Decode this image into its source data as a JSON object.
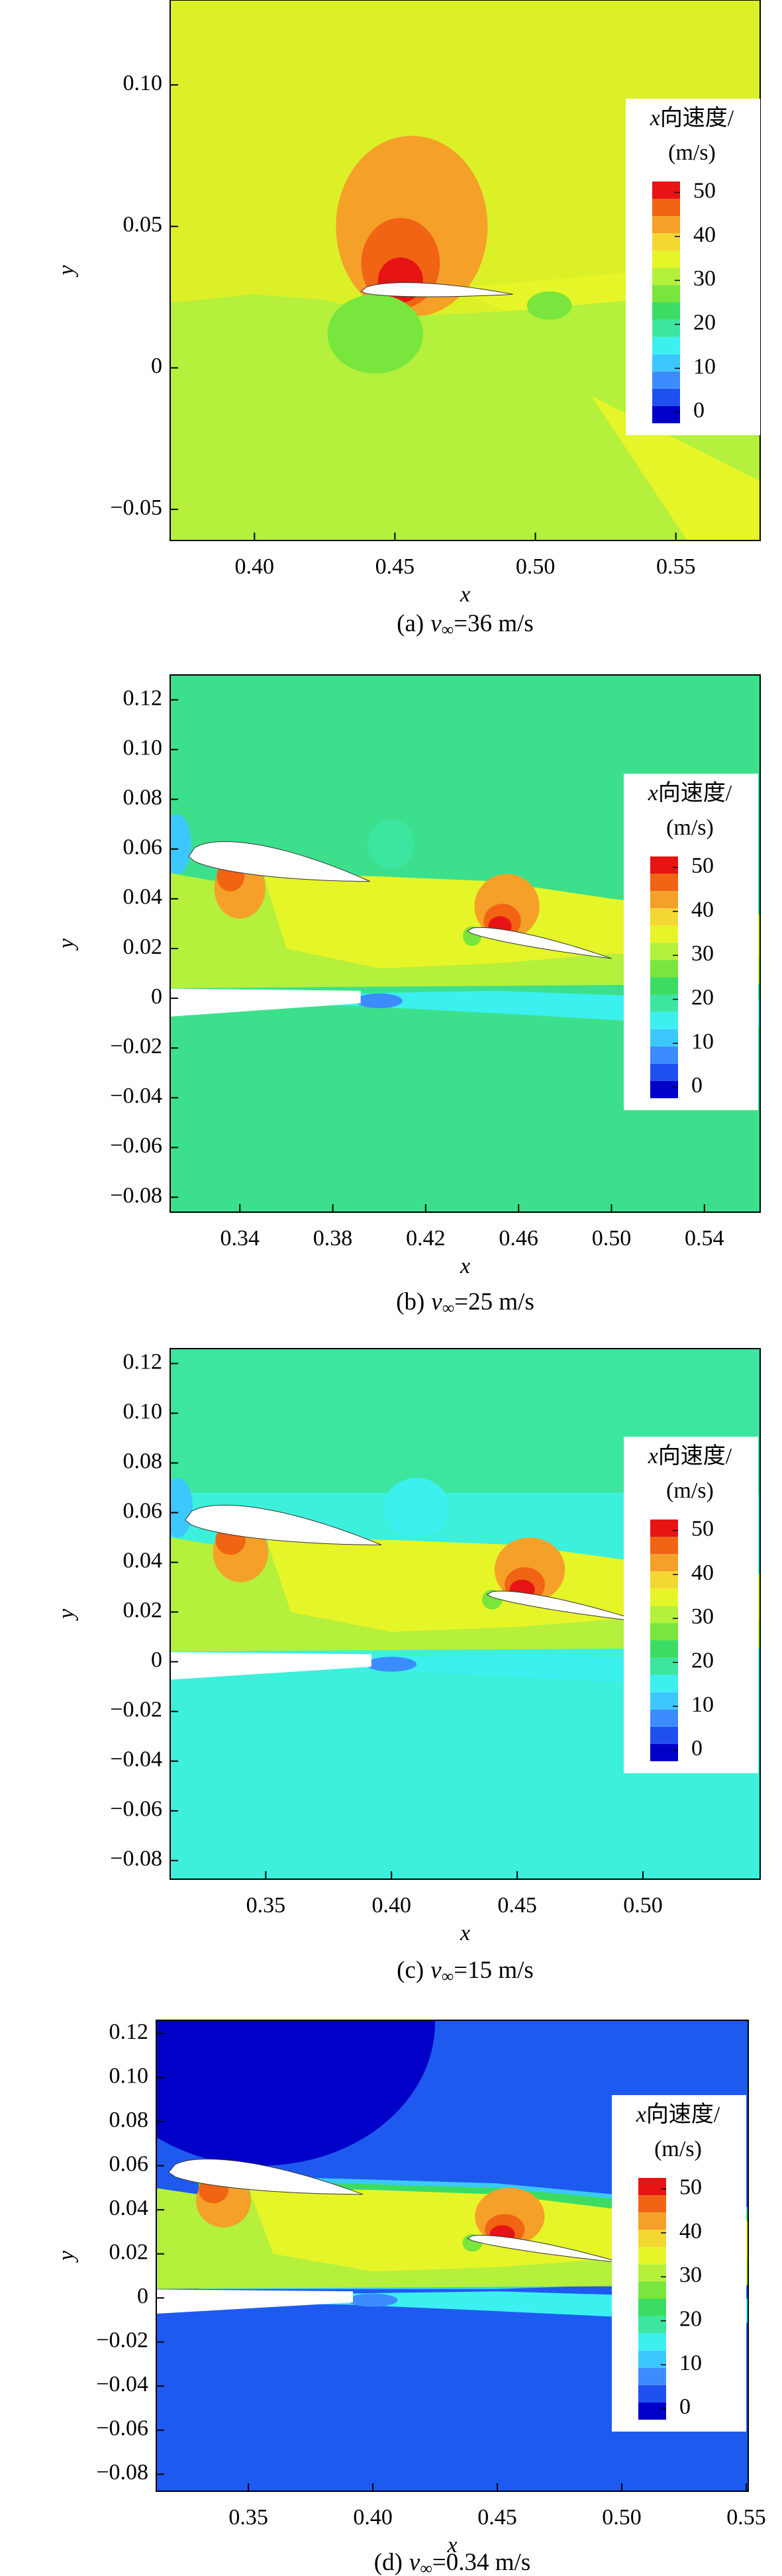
{
  "chart_data": [
    {
      "type": "contour",
      "caption": {
        "label": "(a)",
        "var": "v",
        "sub": "∞",
        "text": "=36 m/s"
      },
      "xlabel": "x",
      "ylabel": "y",
      "xlim": [
        0.37,
        0.58
      ],
      "ylim": [
        -0.061,
        0.13
      ],
      "xticks": [
        {
          "value": 0.4,
          "label": "0.40"
        },
        0.45,
        {
          "value": 0.5,
          "label": "0.50"
        },
        0.55
      ],
      "yticks": [
        {
          "value": -0.05,
          "label": "−0.05"
        },
        0,
        {
          "value": 0.05,
          "label": "0.05"
        },
        {
          "value": 0.1,
          "label": "0.10"
        }
      ],
      "background": "#dcf028",
      "colorbar": {
        "var": "x",
        "title": "向速度/",
        "unit": "(m/s)",
        "lim": [
          -2.5,
          52.5
        ],
        "ticks": [
          0,
          10,
          20,
          30,
          40,
          50
        ],
        "colors": [
          "#0000c8",
          "#1e50f0",
          "#3c8cff",
          "#3cc8ff",
          "#3cf0f0",
          "#3ce6a0",
          "#3cdc64",
          "#78e63c",
          "#b4f03c",
          "#e6f528",
          "#f5d732",
          "#f5a028",
          "#f06414",
          "#e61414"
        ]
      }
    },
    {
      "type": "contour",
      "caption": {
        "label": "(b)",
        "var": "v",
        "sub": "∞",
        "text": "=25 m/s"
      },
      "xlabel": "x",
      "ylabel": "y",
      "xlim": [
        0.31,
        0.564
      ],
      "ylim": [
        -0.086,
        0.13
      ],
      "xticks": [
        0.34,
        0.38,
        0.42,
        0.46,
        {
          "value": 0.5,
          "label": "0.50"
        },
        0.54
      ],
      "yticks": [
        {
          "value": -0.08,
          "label": "−0.08"
        },
        {
          "value": -0.06,
          "label": "−0.06"
        },
        {
          "value": -0.04,
          "label": "−0.04"
        },
        {
          "value": -0.02,
          "label": "−0.02"
        },
        0,
        0.02,
        0.04,
        0.06,
        0.08,
        {
          "value": 0.1,
          "label": "0.10"
        },
        0.12
      ],
      "background": "#3ce08c",
      "colorbar": {
        "var": "x",
        "title": "向速度/",
        "unit": "(m/s)",
        "lim": [
          -2.5,
          52.5
        ],
        "ticks": [
          0,
          10,
          20,
          30,
          40,
          50
        ],
        "colors": [
          "#0000c8",
          "#1e50f0",
          "#3c8cff",
          "#3cc8ff",
          "#3cf0f0",
          "#3ce6a0",
          "#3cdc64",
          "#78e63c",
          "#b4f03c",
          "#e6f528",
          "#f5d732",
          "#f5a028",
          "#f06414",
          "#e61414"
        ]
      }
    },
    {
      "type": "contour",
      "caption": {
        "label": "(c)",
        "var": "v",
        "sub": "∞",
        "text": "=15 m/s"
      },
      "xlabel": "x",
      "ylabel": "y",
      "xlim": [
        0.312,
        0.5466
      ],
      "ylim": [
        -0.0875,
        0.126
      ],
      "xticks": [
        0.35,
        {
          "value": 0.4,
          "label": "0.40"
        },
        0.45,
        {
          "value": 0.5,
          "label": "0.50"
        }
      ],
      "yticks": [
        {
          "value": -0.08,
          "label": "−0.08"
        },
        {
          "value": -0.06,
          "label": "−0.06"
        },
        {
          "value": -0.04,
          "label": "−0.04"
        },
        {
          "value": -0.02,
          "label": "−0.02"
        },
        0,
        0.02,
        0.04,
        0.06,
        0.08,
        {
          "value": 0.1,
          "label": "0.10"
        },
        0.12
      ],
      "background": "#3cf0dc",
      "colorbar": {
        "var": "x",
        "title": "向速度/",
        "unit": "(m/s)",
        "lim": [
          -2.5,
          52.5
        ],
        "ticks": [
          0,
          10,
          20,
          30,
          40,
          50
        ],
        "colors": [
          "#0000c8",
          "#1e50f0",
          "#3c8cff",
          "#3cc8ff",
          "#3cf0f0",
          "#3ce6a0",
          "#3cdc64",
          "#78e63c",
          "#b4f03c",
          "#e6f528",
          "#f5d732",
          "#f5a028",
          "#f06414",
          "#e61414"
        ]
      }
    },
    {
      "type": "contour",
      "caption": {
        "label": "(d)",
        "var": "v",
        "sub": "∞",
        "text": "=0.34 m/s"
      },
      "xlabel": "x",
      "ylabel": "y",
      "xlim": [
        0.313,
        0.5508
      ],
      "ylim": [
        -0.0877,
        0.126
      ],
      "xticks": [
        0.35,
        {
          "value": 0.4,
          "label": "0.40"
        },
        0.45,
        {
          "value": 0.5,
          "label": "0.50"
        },
        0.55
      ],
      "yticks": [
        {
          "value": -0.08,
          "label": "−0.08"
        },
        {
          "value": -0.06,
          "label": "−0.06"
        },
        {
          "value": -0.04,
          "label": "−0.04"
        },
        {
          "value": -0.02,
          "label": "−0.02"
        },
        0,
        0.02,
        0.04,
        0.06,
        0.08,
        {
          "value": 0.1,
          "label": "0.10"
        },
        0.12
      ],
      "background": "#1e5af0",
      "colorbar": {
        "var": "x",
        "title": "向速度/",
        "unit": "(m/s)",
        "lim": [
          -2.5,
          52.5
        ],
        "ticks": [
          0,
          10,
          20,
          30,
          40,
          50
        ],
        "colors": [
          "#0000c8",
          "#1e50f0",
          "#3c8cff",
          "#3cc8ff",
          "#3cf0f0",
          "#3ce6a0",
          "#3cdc64",
          "#78e63c",
          "#b4f03c",
          "#e6f528",
          "#f5d732",
          "#f5a028",
          "#f06414",
          "#e61414"
        ]
      }
    }
  ]
}
